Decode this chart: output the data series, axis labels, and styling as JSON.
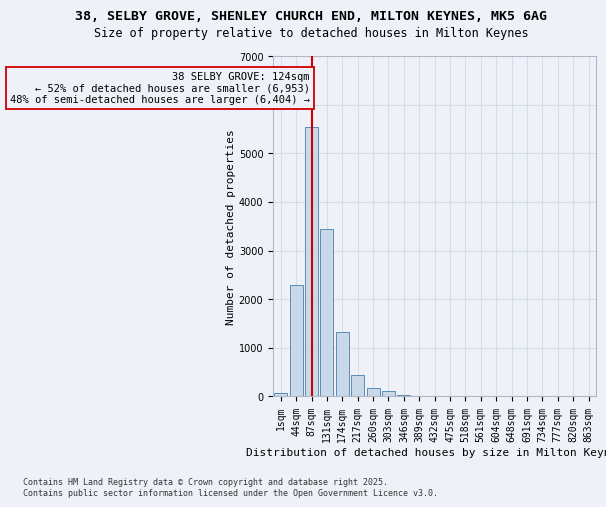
{
  "title_line1": "38, SELBY GROVE, SHENLEY CHURCH END, MILTON KEYNES, MK5 6AG",
  "title_line2": "Size of property relative to detached houses in Milton Keynes",
  "xlabel": "Distribution of detached houses by size in Milton Keynes",
  "ylabel": "Number of detached properties",
  "bar_labels": [
    "1sqm",
    "44sqm",
    "87sqm",
    "131sqm",
    "174sqm",
    "217sqm",
    "260sqm",
    "303sqm",
    "346sqm",
    "389sqm",
    "432sqm",
    "475sqm",
    "518sqm",
    "561sqm",
    "604sqm",
    "648sqm",
    "691sqm",
    "734sqm",
    "777sqm",
    "820sqm",
    "863sqm"
  ],
  "bar_values": [
    70,
    2300,
    5550,
    3450,
    1320,
    440,
    175,
    110,
    40,
    10,
    5,
    3,
    2,
    1,
    0,
    0,
    0,
    0,
    0,
    0,
    0
  ],
  "bar_color": "#c9d9e8",
  "bar_edge_color": "#5b8db8",
  "vline_x_index": 2,
  "vline_color": "#cc0000",
  "annotation_text": "38 SELBY GROVE: 124sqm\n← 52% of detached houses are smaller (6,953)\n48% of semi-detached houses are larger (6,404) →",
  "ylim": [
    0,
    7000
  ],
  "yticks": [
    0,
    1000,
    2000,
    3000,
    4000,
    5000,
    6000,
    7000
  ],
  "grid_color": "#d4dce8",
  "background_color": "#eef2f8",
  "footer_line1": "Contains HM Land Registry data © Crown copyright and database right 2025.",
  "footer_line2": "Contains public sector information licensed under the Open Government Licence v3.0.",
  "title_fontsize": 9.5,
  "subtitle_fontsize": 8.5,
  "axis_label_fontsize": 8,
  "tick_fontsize": 7,
  "annotation_fontsize": 7.5,
  "footer_fontsize": 6
}
